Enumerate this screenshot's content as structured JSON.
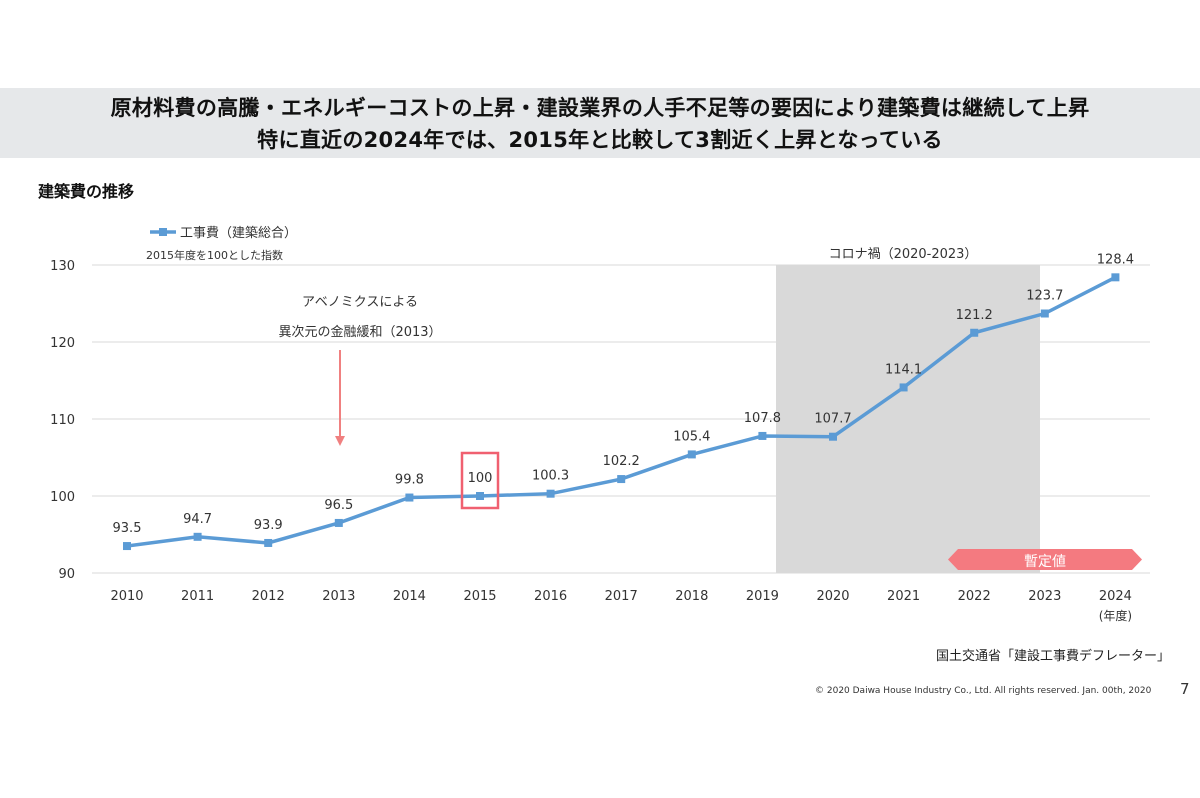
{
  "header": {
    "line1": "原材料費の高騰・エネルギーコストの上昇・建設業界の人手不足等の要因により建築費は継続して上昇",
    "line2": "特に直近の2024年では、2015年と比較して3割近く上昇となっている"
  },
  "section_title": "建築費の推移",
  "chart_data": {
    "type": "line",
    "x": [
      2010,
      2011,
      2012,
      2013,
      2014,
      2015,
      2016,
      2017,
      2018,
      2019,
      2020,
      2021,
      2022,
      2023,
      2024
    ],
    "series": [
      {
        "name": "工事費（建築総合）",
        "values": [
          93.5,
          94.7,
          93.9,
          96.5,
          99.8,
          100,
          100.3,
          102.2,
          105.4,
          107.8,
          107.7,
          114.1,
          121.2,
          123.7,
          128.4
        ],
        "color": "#5b9bd5"
      }
    ],
    "data_labels": [
      "93.5",
      "94.7",
      "93.9",
      "96.5",
      "99.8",
      "100",
      "100.3",
      "102.2",
      "105.4",
      "107.8",
      "107.7",
      "114.1",
      "121.2",
      "123.7",
      "128.4"
    ],
    "ylim": [
      90,
      130
    ],
    "yticks": [
      "90",
      "100",
      "110",
      "120",
      "130"
    ],
    "xticks": [
      "2010",
      "2011",
      "2012",
      "2013",
      "2014",
      "2015",
      "2016",
      "2017",
      "2018",
      "2019",
      "2020",
      "2021",
      "2022",
      "2023",
      "2024"
    ],
    "xunit": "(年度)",
    "ylabel": "2015年度を100とした指数",
    "grid": true,
    "legend": "top-left",
    "annotations": {
      "abenomics_line1": "アベノミクスによる",
      "abenomics_line2": "異次元の金融緩和（2013）",
      "covid": "コロナ禍（2020-2023）",
      "provisional": "暫定値",
      "highlight_year": 2015
    },
    "colors": {
      "arrow": "#f08080",
      "highlight": "#f06070",
      "covid_shade": "#d9d9d9",
      "provisional": "#f47a80"
    }
  },
  "footer": {
    "source": "国土交通省「建設工事費デフレーター」",
    "copyright": "© 2020 Daiwa House Industry Co., Ltd. All rights reserved.  Jan. 00th, 2020",
    "page": "7"
  }
}
